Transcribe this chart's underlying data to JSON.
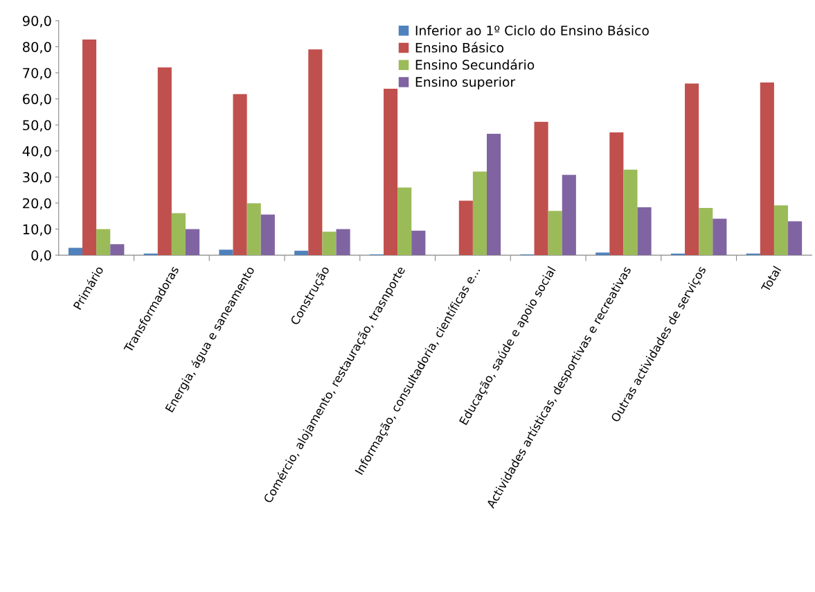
{
  "chart_data": {
    "type": "bar",
    "categories": [
      "Primário",
      "Transformadoras",
      "Energia, água e saneamento",
      "Construção",
      "Comércio, alojamento, restauração, trasnporte",
      "Informação, consultadoria, científicas e...",
      "Educação, saúde e apoio social",
      "Actividades artísticas, desportivas e recreativas",
      "Outras actividades de serviços",
      "Total"
    ],
    "series": [
      {
        "name": "Inferior ao 1º Ciclo do Ensino Básico",
        "color": "#4f81bd",
        "values": [
          2.8,
          0.6,
          2.1,
          1.7,
          0.3,
          0.0,
          0.3,
          1.0,
          0.6,
          0.6
        ]
      },
      {
        "name": "Ensino Básico",
        "color": "#c0504d",
        "values": [
          82.8,
          72.1,
          61.8,
          79.0,
          63.9,
          20.9,
          51.2,
          47.1,
          65.9,
          66.3
        ]
      },
      {
        "name": "Ensino Secundário",
        "color": "#9bbb59",
        "values": [
          10.0,
          16.1,
          19.9,
          9.0,
          26.0,
          32.1,
          17.0,
          32.8,
          18.1,
          19.1
        ]
      },
      {
        "name": "Ensino superior",
        "color": "#8064a2",
        "values": [
          4.2,
          10.0,
          15.6,
          10.0,
          9.4,
          46.6,
          30.8,
          18.4,
          14.0,
          13.0
        ]
      }
    ],
    "ylim": [
      0,
      90
    ],
    "yticks": [
      {
        "value": 0,
        "label": "0,0"
      },
      {
        "value": 10,
        "label": "10,0"
      },
      {
        "value": 20,
        "label": "20,0"
      },
      {
        "value": 30,
        "label": "30,0"
      },
      {
        "value": 40,
        "label": "40,0"
      },
      {
        "value": 50,
        "label": "50,0"
      },
      {
        "value": 60,
        "label": "60,0"
      },
      {
        "value": 70,
        "label": "70,0"
      },
      {
        "value": 80,
        "label": "80,0"
      },
      {
        "value": 90,
        "label": "90,0"
      }
    ],
    "grid": false,
    "legend": "top right"
  }
}
